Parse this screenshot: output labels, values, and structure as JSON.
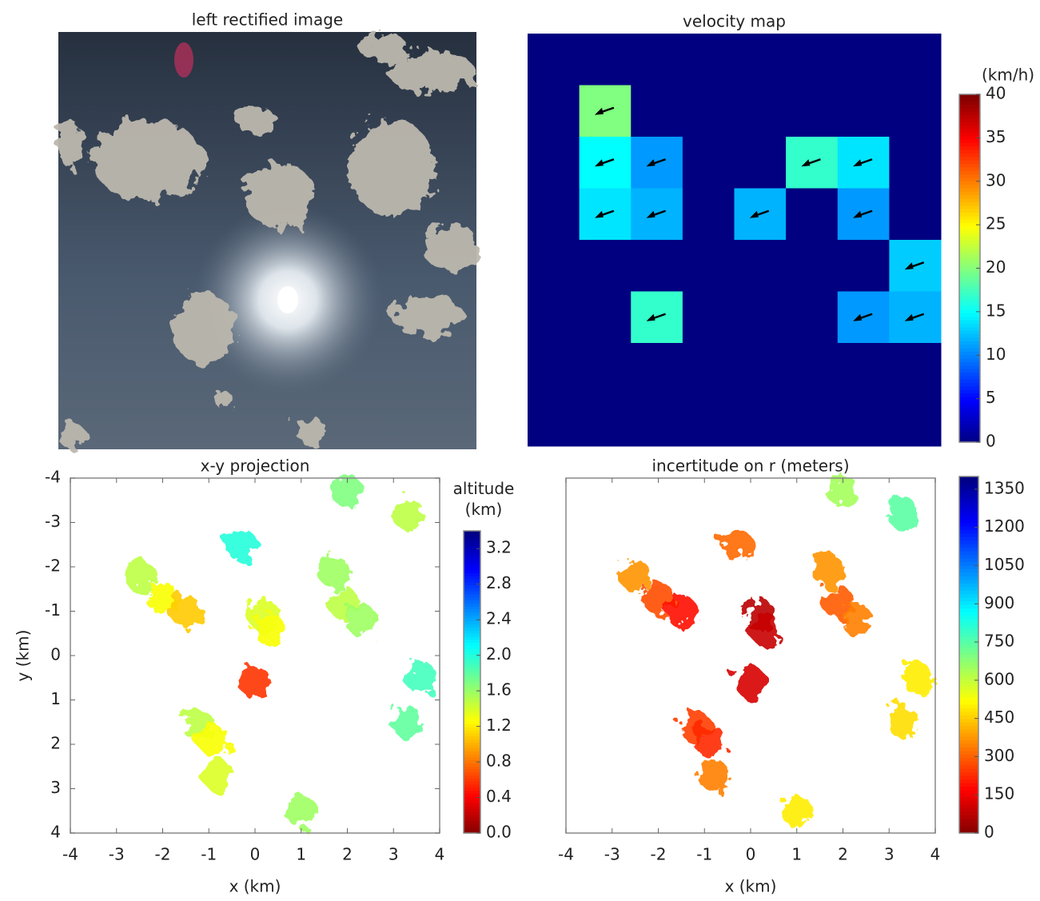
{
  "chart_data": [
    {
      "type": "image",
      "title": "left rectified image"
    },
    {
      "type": "heatmap",
      "title": "velocity map",
      "colormap": "jet",
      "values": [
        [
          0,
          0,
          0,
          0,
          0,
          0,
          0,
          0
        ],
        [
          0,
          20,
          0,
          0,
          0,
          0,
          0,
          0
        ],
        [
          0,
          15,
          11,
          0,
          0,
          17,
          14,
          0
        ],
        [
          0,
          14,
          12,
          0,
          12,
          0,
          11,
          0
        ],
        [
          0,
          0,
          0,
          0,
          0,
          0,
          0,
          13
        ],
        [
          0,
          0,
          17,
          0,
          0,
          0,
          11,
          12
        ],
        [
          0,
          0,
          0,
          0,
          0,
          0,
          0,
          0
        ],
        [
          0,
          0,
          0,
          0,
          0,
          0,
          0,
          0
        ]
      ],
      "colorbar": {
        "label": "(km/h)",
        "lim": [
          0,
          40
        ],
        "ticks": [
          0,
          5,
          10,
          15,
          20,
          25,
          30,
          35,
          40
        ]
      }
    },
    {
      "type": "scatter",
      "title": "x-y projection",
      "xlabel": "x (km)",
      "ylabel": "y (km)",
      "colormap": "jet_r",
      "xlim": [
        -4,
        4
      ],
      "ylim": [
        4,
        -4
      ],
      "xticks": [
        -4,
        -3,
        -2,
        -1,
        0,
        1,
        2,
        3,
        4
      ],
      "yticks": [
        -4,
        -3,
        -2,
        -1,
        0,
        1,
        2,
        3,
        4
      ],
      "x": [
        -2.0,
        -1.5,
        -2.5,
        -0.3,
        0.2,
        0.3,
        1.9,
        2.3,
        1.7,
        2.0,
        3.3,
        3.6,
        3.3,
        -1.2,
        -0.9,
        -0.8,
        1.0,
        0.0
      ],
      "y": [
        -1.3,
        -1.0,
        -1.8,
        -2.5,
        -0.9,
        -0.6,
        -1.2,
        -0.8,
        -1.9,
        -3.7,
        -3.2,
        0.5,
        1.5,
        1.6,
        1.9,
        2.7,
        3.5,
        0.6
      ],
      "values": [
        1.3,
        1.1,
        1.5,
        2.0,
        1.4,
        1.3,
        1.5,
        1.6,
        1.6,
        1.7,
        1.5,
        1.9,
        1.8,
        1.5,
        1.3,
        1.4,
        1.6,
        0.6
      ],
      "colorbar": {
        "label": "altitude (km)",
        "lim": [
          0,
          3.4
        ],
        "ticks": [
          {
            "value": 0,
            "label": "0.0"
          },
          0.4,
          0.8,
          1.2,
          1.6,
          {
            "value": 2,
            "label": "2.0"
          },
          2.4,
          2.8,
          3.2
        ]
      }
    },
    {
      "type": "scatter",
      "title": "incertitude on r (meters)",
      "xlabel": "x (km)",
      "colormap": "jet_r",
      "xlim": [
        -4,
        4
      ],
      "ylim": [
        4,
        -4
      ],
      "xticks": [
        -4,
        -3,
        -2,
        -1,
        0,
        1,
        2,
        3,
        4
      ],
      "x": [
        -2.0,
        -1.5,
        -2.5,
        -0.3,
        0.2,
        0.3,
        1.9,
        2.3,
        1.7,
        2.0,
        3.3,
        3.6,
        3.3,
        -1.2,
        -0.9,
        -0.8,
        1.0,
        0.0
      ],
      "y": [
        -1.3,
        -1.0,
        -1.8,
        -2.5,
        -0.9,
        -0.6,
        -1.2,
        -0.8,
        -1.9,
        -3.7,
        -3.2,
        0.5,
        1.5,
        1.6,
        1.9,
        2.7,
        3.5,
        0.6
      ],
      "values": [
        280,
        200,
        380,
        320,
        80,
        100,
        300,
        350,
        380,
        650,
        750,
        500,
        480,
        260,
        230,
        350,
        500,
        120
      ],
      "colorbar": {
        "lim": [
          0,
          1400
        ],
        "ticks": [
          0,
          150,
          300,
          450,
          600,
          750,
          900,
          1050,
          1200,
          1350
        ]
      }
    }
  ]
}
